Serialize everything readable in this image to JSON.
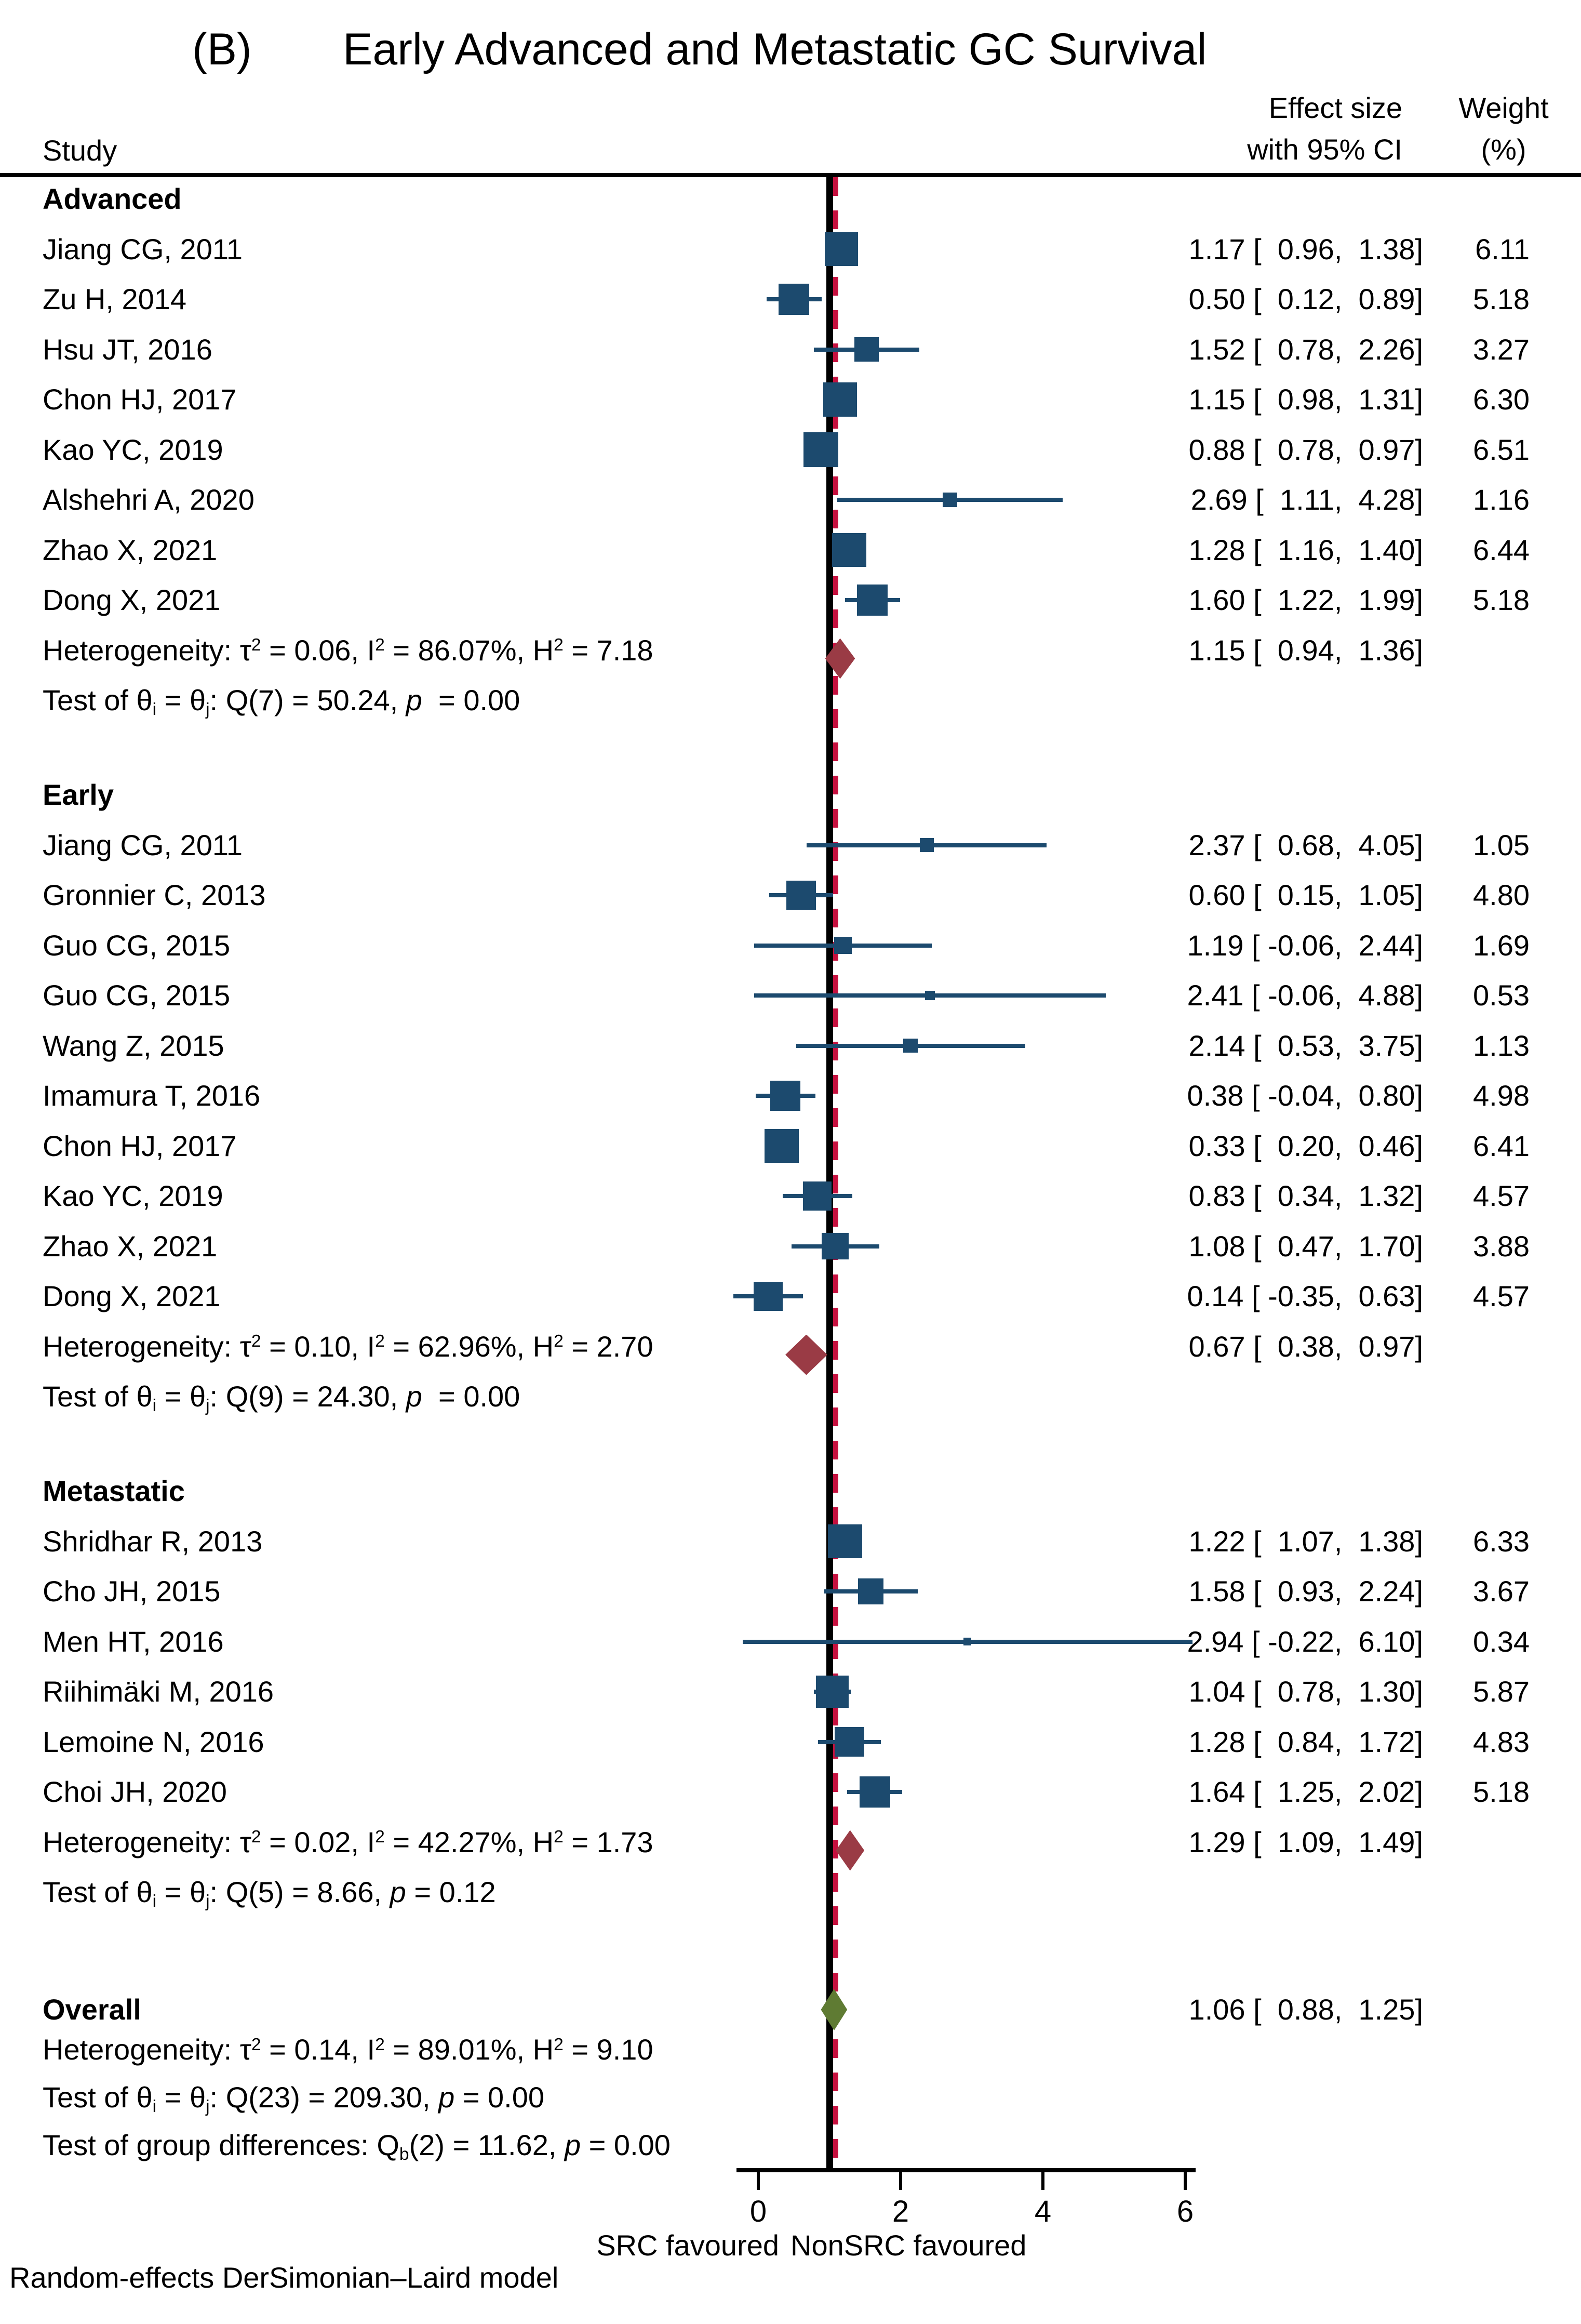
{
  "title": {
    "panel": "(B)",
    "text": "Early Advanced and Metastatic GC Survival"
  },
  "columns": {
    "study": "Study",
    "effect_line1": "Effect size",
    "effect_line2": "with 95% CI",
    "weight_line1": "Weight",
    "weight_line2": "(%)"
  },
  "axis": {
    "left_label": "SRC favoured",
    "right_label": "NonSRC favoured"
  },
  "footer": "Random-effects DerSimonian–Laird model",
  "colors": {
    "marker_blue": "#1c4a6e",
    "diamond_red": "#9a3b45",
    "diamond_green": "#5f7b33",
    "ref_line_red": "#c5103e",
    "line_black": "#000000"
  },
  "chart_data": {
    "type": "forest",
    "title": "Early Advanced and Metastatic GC Survival",
    "axis": {
      "ticks": [
        0,
        2,
        4,
        6
      ],
      "xlim": [
        -0.4,
        6.15
      ],
      "null_line": 1.0,
      "pooled_line": 1.06
    },
    "groups": [
      {
        "name": "Advanced",
        "studies": [
          {
            "label": "Jiang CG, 2011",
            "es": 1.17,
            "lo": 0.96,
            "hi": 1.38,
            "weight": 6.11,
            "es_text": "1.17 [  0.96,  1.38]",
            "weight_text": "6.11"
          },
          {
            "label": "Zu H, 2014",
            "es": 0.5,
            "lo": 0.12,
            "hi": 0.89,
            "weight": 5.18,
            "es_text": "0.50 [  0.12,  0.89]",
            "weight_text": "5.18"
          },
          {
            "label": "Hsu JT, 2016",
            "es": 1.52,
            "lo": 0.78,
            "hi": 2.26,
            "weight": 3.27,
            "es_text": "1.52 [  0.78,  2.26]",
            "weight_text": "3.27"
          },
          {
            "label": "Chon HJ, 2017",
            "es": 1.15,
            "lo": 0.98,
            "hi": 1.31,
            "weight": 6.3,
            "es_text": "1.15 [  0.98,  1.31]",
            "weight_text": "6.30"
          },
          {
            "label": "Kao YC, 2019",
            "es": 0.88,
            "lo": 0.78,
            "hi": 0.97,
            "weight": 6.51,
            "es_text": "0.88 [  0.78,  0.97]",
            "weight_text": "6.51"
          },
          {
            "label": "Alshehri A, 2020",
            "es": 2.69,
            "lo": 1.11,
            "hi": 4.28,
            "weight": 1.16,
            "es_text": "2.69 [  1.11,  4.28]",
            "weight_text": "1.16"
          },
          {
            "label": "Zhao X, 2021",
            "es": 1.28,
            "lo": 1.16,
            "hi": 1.4,
            "weight": 6.44,
            "es_text": "1.28 [  1.16,  1.40]",
            "weight_text": "6.44"
          },
          {
            "label": "Dong X, 2021",
            "es": 1.6,
            "lo": 1.22,
            "hi": 1.99,
            "weight": 5.18,
            "es_text": "1.60 [  1.22,  1.99]",
            "weight_text": "5.18"
          }
        ],
        "summary": {
          "es": 1.15,
          "lo": 0.94,
          "hi": 1.36,
          "es_text": "1.15 [  0.94,  1.36]"
        },
        "heterogeneity_html": "Heterogeneity: τ<sup>2</sup> = 0.06, I<sup>2</sup> = 86.07%, H<sup>2</sup> = 7.18",
        "test_html": "Test of θ<sub>i</sub> = θ<sub>j</sub>: Q(7) = 50.24, <i>p</i>  = 0.00"
      },
      {
        "name": "Early",
        "studies": [
          {
            "label": "Jiang CG, 2011",
            "es": 2.37,
            "lo": 0.68,
            "hi": 4.05,
            "weight": 1.05,
            "es_text": "2.37 [  0.68,  4.05]",
            "weight_text": "1.05"
          },
          {
            "label": "Gronnier C, 2013",
            "es": 0.6,
            "lo": 0.15,
            "hi": 1.05,
            "weight": 4.8,
            "es_text": "0.60 [  0.15,  1.05]",
            "weight_text": "4.80"
          },
          {
            "label": "Guo CG, 2015",
            "es": 1.19,
            "lo": -0.06,
            "hi": 2.44,
            "weight": 1.69,
            "es_text": "1.19 [ -0.06,  2.44]",
            "weight_text": "1.69"
          },
          {
            "label": "Guo CG, 2015",
            "es": 2.41,
            "lo": -0.06,
            "hi": 4.88,
            "weight": 0.53,
            "es_text": "2.41 [ -0.06,  4.88]",
            "weight_text": "0.53"
          },
          {
            "label": "Wang Z, 2015",
            "es": 2.14,
            "lo": 0.53,
            "hi": 3.75,
            "weight": 1.13,
            "es_text": "2.14 [  0.53,  3.75]",
            "weight_text": "1.13"
          },
          {
            "label": "Imamura T, 2016",
            "es": 0.38,
            "lo": -0.04,
            "hi": 0.8,
            "weight": 4.98,
            "es_text": "0.38 [ -0.04,  0.80]",
            "weight_text": "4.98"
          },
          {
            "label": "Chon HJ, 2017",
            "es": 0.33,
            "lo": 0.2,
            "hi": 0.46,
            "weight": 6.41,
            "es_text": "0.33 [  0.20,  0.46]",
            "weight_text": "6.41"
          },
          {
            "label": "Kao YC, 2019",
            "es": 0.83,
            "lo": 0.34,
            "hi": 1.32,
            "weight": 4.57,
            "es_text": "0.83 [  0.34,  1.32]",
            "weight_text": "4.57"
          },
          {
            "label": "Zhao X, 2021",
            "es": 1.08,
            "lo": 0.47,
            "hi": 1.7,
            "weight": 3.88,
            "es_text": "1.08 [  0.47,  1.70]",
            "weight_text": "3.88"
          },
          {
            "label": "Dong X, 2021",
            "es": 0.14,
            "lo": -0.35,
            "hi": 0.63,
            "weight": 4.57,
            "es_text": "0.14 [ -0.35,  0.63]",
            "weight_text": "4.57"
          }
        ],
        "summary": {
          "es": 0.67,
          "lo": 0.38,
          "hi": 0.97,
          "es_text": "0.67 [  0.38,  0.97]"
        },
        "heterogeneity_html": "Heterogeneity: τ<sup>2</sup> = 0.10, I<sup>2</sup> = 62.96%, H<sup>2</sup> = 2.70",
        "test_html": "Test of θ<sub>i</sub> = θ<sub>j</sub>: Q(9) = 24.30, <i>p</i>  = 0.00"
      },
      {
        "name": "Metastatic",
        "studies": [
          {
            "label": "Shridhar R, 2013",
            "es": 1.22,
            "lo": 1.07,
            "hi": 1.38,
            "weight": 6.33,
            "es_text": "1.22 [  1.07,  1.38]",
            "weight_text": "6.33"
          },
          {
            "label": "Cho JH, 2015",
            "es": 1.58,
            "lo": 0.93,
            "hi": 2.24,
            "weight": 3.67,
            "es_text": "1.58 [  0.93,  2.24]",
            "weight_text": "3.67"
          },
          {
            "label": "Men HT, 2016",
            "es": 2.94,
            "lo": -0.22,
            "hi": 6.1,
            "weight": 0.34,
            "es_text": "2.94 [ -0.22,  6.10]",
            "weight_text": "0.34"
          },
          {
            "label": "Riihimäki M, 2016",
            "es": 1.04,
            "lo": 0.78,
            "hi": 1.3,
            "weight": 5.87,
            "es_text": "1.04 [  0.78,  1.30]",
            "weight_text": "5.87"
          },
          {
            "label": "Lemoine N, 2016",
            "es": 1.28,
            "lo": 0.84,
            "hi": 1.72,
            "weight": 4.83,
            "es_text": "1.28 [  0.84,  1.72]",
            "weight_text": "4.83"
          },
          {
            "label": "Choi JH, 2020",
            "es": 1.64,
            "lo": 1.25,
            "hi": 2.02,
            "weight": 5.18,
            "es_text": "1.64 [  1.25,  2.02]",
            "weight_text": "5.18"
          }
        ],
        "summary": {
          "es": 1.29,
          "lo": 1.09,
          "hi": 1.49,
          "es_text": "1.29 [  1.09,  1.49]"
        },
        "heterogeneity_html": "Heterogeneity: τ<sup>2</sup> = 0.02, I<sup>2</sup> = 42.27%, H<sup>2</sup> = 1.73",
        "test_html": "Test of θ<sub>i</sub> = θ<sub>j</sub>: Q(5) = 8.66, <i>p</i> = 0.12"
      }
    ],
    "overall": {
      "label": "Overall",
      "es": 1.06,
      "lo": 0.88,
      "hi": 1.25,
      "es_text": "1.06 [  0.88,  1.25]",
      "heterogeneity_html": "Heterogeneity: τ<sup>2</sup> = 0.14, I<sup>2</sup> = 89.01%, H<sup>2</sup> = 9.10",
      "test_html": "Test of θ<sub>i</sub> = θ<sub>j</sub>: Q(23) = 209.30, <i>p</i> = 0.00",
      "group_diff_html": "Test of group differences: Q<sub>b</sub>(2) = 11.62, <i>p</i> = 0.00"
    }
  }
}
